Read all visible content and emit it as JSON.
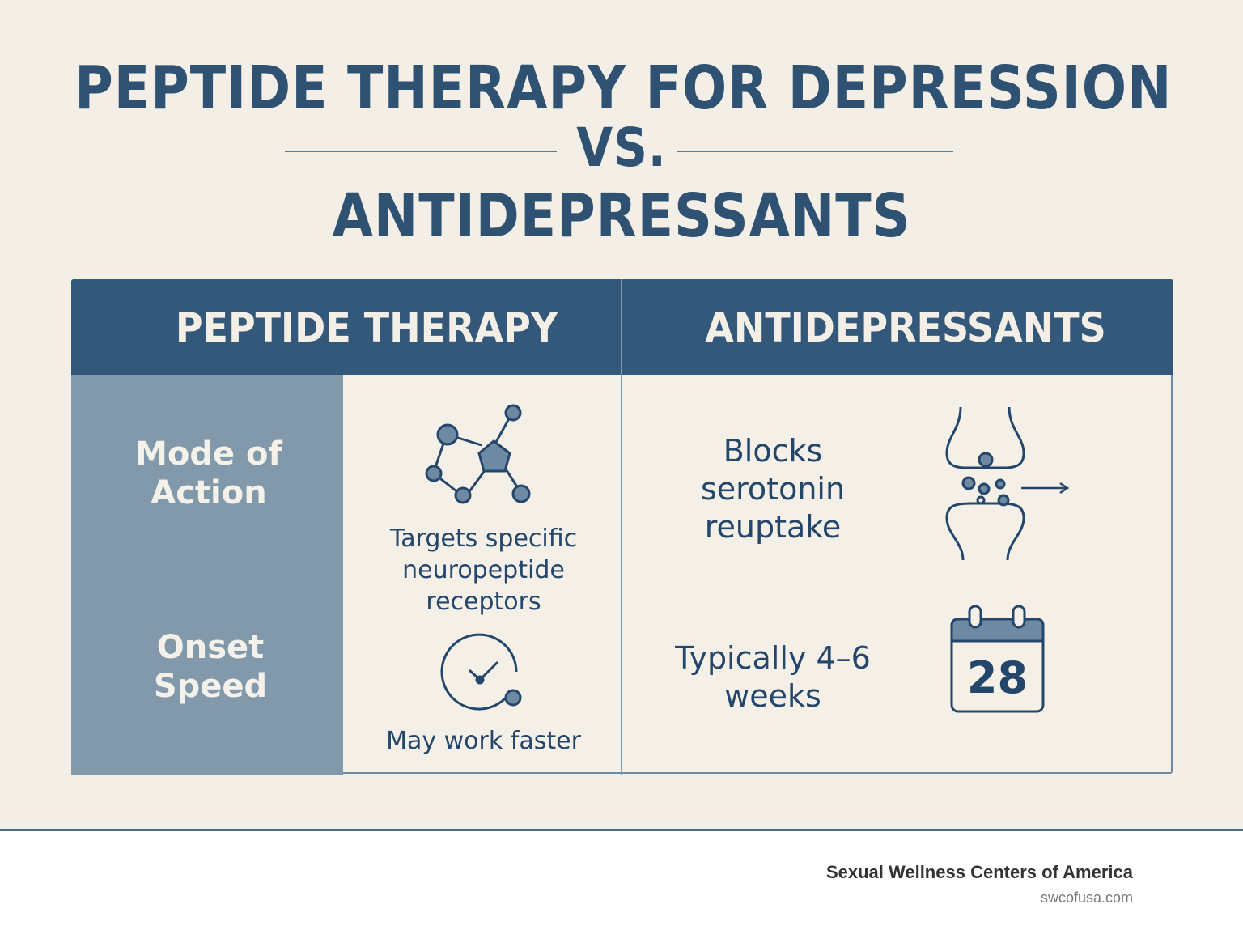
{
  "header": {
    "title_line1": "PEPTIDE THERAPY FOR DEPRESSION",
    "vs": "VS.",
    "title_line2": "ANTIDEPRESSANTS"
  },
  "table": {
    "columns": [
      "PEPTIDE THERAPY",
      "ANTIDEPRESSANTS"
    ],
    "rows": [
      {
        "label": "Mode of Action",
        "peptide": "Targets specific neuropeptide receptors",
        "antidepressant": "Blocks serotonin reuptake"
      },
      {
        "label": "Onset Speed",
        "peptide": "May work faster",
        "antidepressant": "Typically 4–6 weeks",
        "calendar_number": "28"
      }
    ]
  },
  "footer": {
    "brand": "Sexual Wellness Centers of America",
    "url": "swcofusa.com"
  }
}
